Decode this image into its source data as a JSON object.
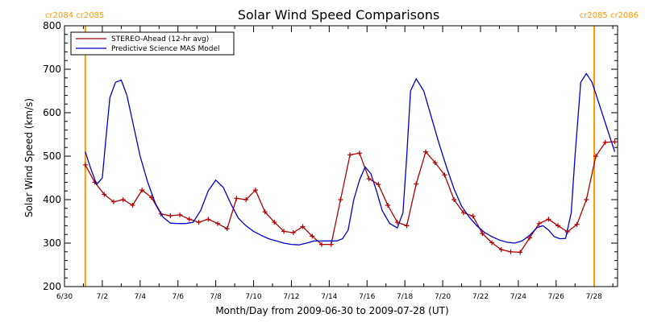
{
  "chart_data": {
    "type": "line",
    "title": "Solar Wind Speed Comparisons",
    "xlabel": "Month/Day from 2009-06-30 to 2009-07-28 (UT)",
    "ylabel": "Solar Wind Speed (km/s)",
    "xlim": [
      0,
      29.25
    ],
    "ylim": [
      200,
      800
    ],
    "xticks": [
      {
        "day": 0,
        "label": "6/30"
      },
      {
        "day": 2,
        "label": "7/2"
      },
      {
        "day": 4,
        "label": "7/4"
      },
      {
        "day": 6,
        "label": "7/6"
      },
      {
        "day": 8,
        "label": "7/8"
      },
      {
        "day": 10,
        "label": "7/10"
      },
      {
        "day": 12,
        "label": "7/12"
      },
      {
        "day": 14,
        "label": "7/14"
      },
      {
        "day": 16,
        "label": "7/16"
      },
      {
        "day": 18,
        "label": "7/18"
      },
      {
        "day": 20,
        "label": "7/20"
      },
      {
        "day": 22,
        "label": "7/22"
      },
      {
        "day": 24,
        "label": "7/24"
      },
      {
        "day": 26,
        "label": "7/26"
      },
      {
        "day": 28,
        "label": "7/28"
      }
    ],
    "yticks": [
      200,
      300,
      400,
      500,
      600,
      700,
      800
    ],
    "vertical_markers": [
      {
        "day": 1.1,
        "label": "cr2084 cr2085",
        "label_side": "left"
      },
      {
        "day": 31.2,
        "label": "cr2085 cr2086",
        "label_side": "right"
      }
    ],
    "legend_position": "top-left",
    "series": [
      {
        "name": "STEREO-Ahead (12-hr avg)",
        "color": "#b00000",
        "markers": true,
        "x": [
          1.1,
          1.6,
          2.1,
          2.6,
          3.1,
          3.6,
          4.1,
          4.6,
          5.1,
          5.6,
          6.1,
          6.6,
          7.1,
          7.6,
          8.1,
          8.6,
          9.1,
          9.6,
          10.1,
          10.6,
          11.1,
          11.6,
          12.1,
          12.6,
          13.1,
          13.6,
          14.1,
          14.6,
          15.1,
          15.6,
          16.1,
          16.6,
          17.1,
          17.6,
          18.1,
          18.6,
          19.1,
          19.6,
          20.1,
          20.6,
          21.1,
          21.6,
          22.1,
          22.6,
          23.1,
          23.6,
          24.1,
          24.6,
          25.1,
          25.6,
          26.1,
          26.6,
          27.1,
          27.6,
          28.1,
          28.6,
          29.1
        ],
        "y": [
          480,
          440,
          412,
          395,
          400,
          387,
          422,
          405,
          367,
          363,
          365,
          355,
          348,
          355,
          345,
          333,
          403,
          400,
          422,
          372,
          348,
          327,
          324,
          338,
          316,
          297,
          297,
          400,
          503,
          507,
          448,
          435,
          387,
          348,
          340,
          436,
          510,
          485,
          457,
          400,
          370,
          362,
          322,
          301,
          285,
          280,
          279,
          312,
          345,
          355,
          340,
          326,
          343,
          400,
          500,
          532,
          533
        ]
      },
      {
        "name": "Predictive Science MAS Model",
        "color": "#0000cc",
        "markers": false,
        "x": [
          1.1,
          1.4,
          1.7,
          2.0,
          2.2,
          2.4,
          2.7,
          3.0,
          3.3,
          3.7,
          4.0,
          4.4,
          4.8,
          5.2,
          5.6,
          6.0,
          6.4,
          6.8,
          7.2,
          7.6,
          8.0,
          8.4,
          8.8,
          9.2,
          9.6,
          10.0,
          10.4,
          10.8,
          11.2,
          11.6,
          12.0,
          12.4,
          12.8,
          13.2,
          13.6,
          14.0,
          14.4,
          14.7,
          15.0,
          15.3,
          15.6,
          15.9,
          16.2,
          16.5,
          16.8,
          17.2,
          17.6,
          17.9,
          18.1,
          18.3,
          18.6,
          19.0,
          19.4,
          19.8,
          20.2,
          20.6,
          21.0,
          21.4,
          21.8,
          22.2,
          22.6,
          23.0,
          23.4,
          23.8,
          24.2,
          24.6,
          25.0,
          25.3,
          25.6,
          25.9,
          26.2,
          26.5,
          26.8,
          27.0,
          27.3,
          27.6,
          27.9,
          28.2,
          28.5,
          28.8,
          29.1
        ],
        "y": [
          510,
          470,
          435,
          450,
          545,
          635,
          670,
          675,
          640,
          560,
          500,
          440,
          392,
          360,
          346,
          345,
          345,
          348,
          375,
          420,
          445,
          428,
          390,
          357,
          340,
          327,
          318,
          310,
          305,
          300,
          297,
          296,
          300,
          305,
          305,
          305,
          305,
          310,
          330,
          400,
          445,
          475,
          460,
          420,
          375,
          345,
          335,
          370,
          500,
          650,
          678,
          650,
          590,
          530,
          475,
          425,
          385,
          360,
          340,
          325,
          315,
          307,
          302,
          300,
          305,
          318,
          336,
          340,
          330,
          315,
          310,
          311,
          370,
          500,
          670,
          690,
          670,
          630,
          590,
          550,
          510
        ]
      }
    ]
  }
}
